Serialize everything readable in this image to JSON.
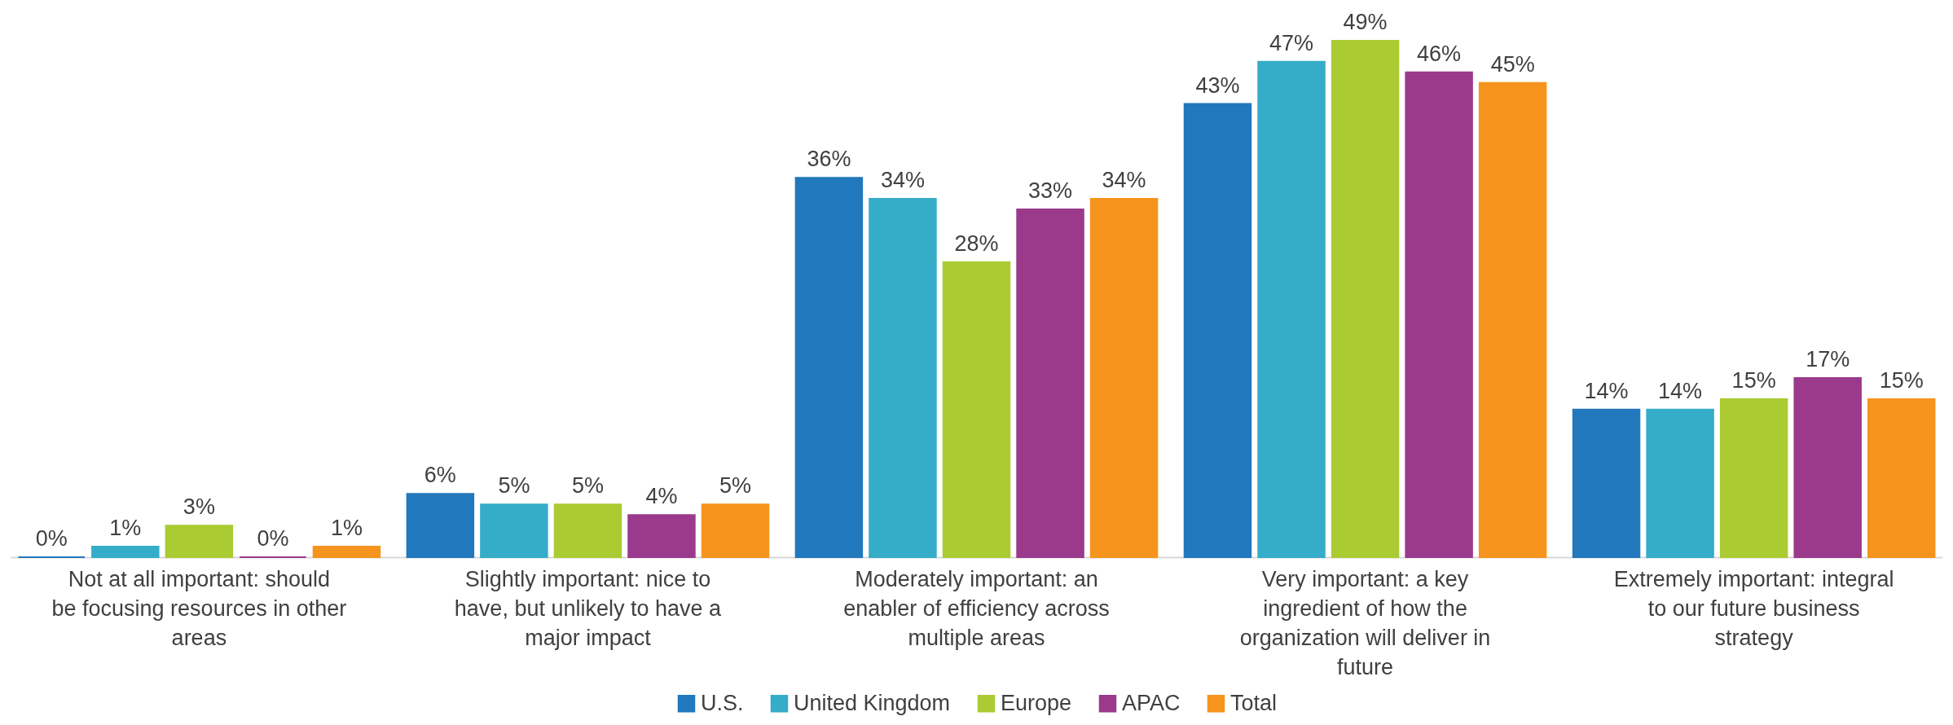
{
  "chart_data": {
    "type": "bar",
    "categories": [
      "Not at all important: should be focusing resources in other areas",
      "Slightly important: nice to have, but unlikely to have a major impact",
      "Moderately important: an enabler of efficiency across multiple areas",
      "Very important: a key ingredient of how the organization will deliver in future",
      "Extremely important: integral to our future business strategy"
    ],
    "series": [
      {
        "name": "U.S.",
        "color": "#2278bd",
        "values": [
          0,
          6,
          36,
          43,
          14
        ],
        "value_labels": [
          "0%",
          "6%",
          "36%",
          "43%",
          "14%"
        ]
      },
      {
        "name": "United Kingdom",
        "color": "#36adc8",
        "values": [
          1,
          5,
          34,
          47,
          14
        ],
        "value_labels": [
          "1%",
          "5%",
          "34%",
          "47%",
          "14%"
        ]
      },
      {
        "name": "Europe",
        "color": "#abcb33",
        "values": [
          3,
          5,
          28,
          49,
          15
        ],
        "value_labels": [
          "3%",
          "5%",
          "28%",
          "49%",
          "15%"
        ]
      },
      {
        "name": "APAC",
        "color": "#9b3a8c",
        "values": [
          0,
          4,
          33,
          46,
          17
        ],
        "value_labels": [
          "0%",
          "4%",
          "33%",
          "46%",
          "17%"
        ]
      },
      {
        "name": "Total",
        "color": "#f7941d",
        "values": [
          1,
          5,
          34,
          45,
          15
        ],
        "value_labels": [
          "1%",
          "5%",
          "34%",
          "45%",
          "15%"
        ]
      }
    ],
    "legend": "bottom",
    "grid": false
  }
}
